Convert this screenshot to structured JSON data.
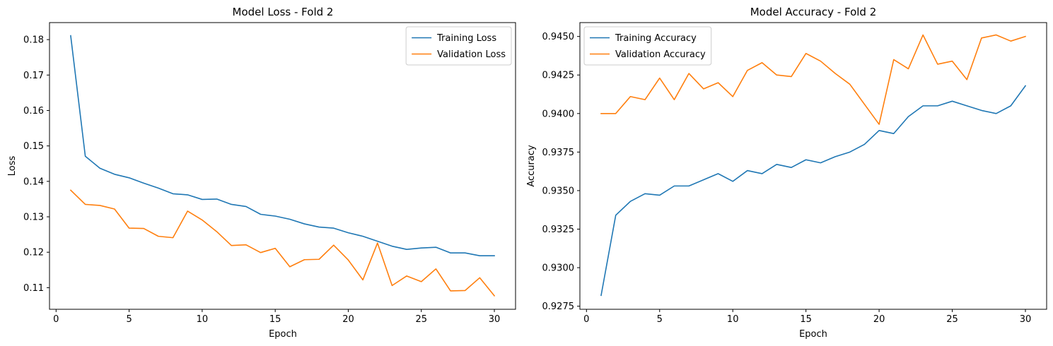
{
  "chart_data": [
    {
      "type": "line",
      "title": "Model Loss - Fold 2",
      "xlabel": "Epoch",
      "ylabel": "Loss",
      "xlim": [
        -0.45,
        31.45
      ],
      "ylim": [
        0.1039,
        0.1848
      ],
      "xticks": [
        0,
        5,
        10,
        15,
        20,
        25,
        30
      ],
      "yticks": [
        0.11,
        0.12,
        0.13,
        0.14,
        0.15,
        0.16,
        0.17,
        0.18
      ],
      "ytick_labels": [
        "0.11",
        "0.12",
        "0.13",
        "0.14",
        "0.15",
        "0.16",
        "0.17",
        "0.18"
      ],
      "legend_position": "top-right",
      "grid": false,
      "x": [
        1,
        2,
        3,
        4,
        5,
        6,
        7,
        8,
        9,
        10,
        11,
        12,
        13,
        14,
        15,
        16,
        17,
        18,
        19,
        20,
        21,
        22,
        23,
        24,
        25,
        26,
        27,
        28,
        29,
        30
      ],
      "series": [
        {
          "name": "Training Loss",
          "color": "#1f77b4",
          "values": [
            0.1811,
            0.1471,
            0.1437,
            0.142,
            0.141,
            0.1395,
            0.1381,
            0.1365,
            0.1362,
            0.1349,
            0.135,
            0.1335,
            0.1329,
            0.1307,
            0.1302,
            0.1293,
            0.128,
            0.1271,
            0.1268,
            0.1255,
            0.1245,
            0.1231,
            0.1217,
            0.1208,
            0.1212,
            0.1214,
            0.1198,
            0.1198,
            0.119,
            0.119
          ]
        },
        {
          "name": "Validation Loss",
          "color": "#ff7f0e",
          "values": [
            0.1375,
            0.1335,
            0.1332,
            0.1322,
            0.1268,
            0.1267,
            0.1245,
            0.1241,
            0.1316,
            0.1291,
            0.1258,
            0.1219,
            0.1221,
            0.1199,
            0.1211,
            0.1159,
            0.1179,
            0.118,
            0.122,
            0.1178,
            0.1122,
            0.1226,
            0.1106,
            0.1133,
            0.1117,
            0.1153,
            0.1091,
            0.1092,
            0.1128,
            0.1077
          ]
        }
      ]
    },
    {
      "type": "line",
      "title": "Model Accuracy - Fold 2",
      "xlabel": "Epoch",
      "ylabel": "Accuracy",
      "xlim": [
        -0.45,
        31.45
      ],
      "ylim": [
        0.9273,
        0.9459
      ],
      "xticks": [
        0,
        5,
        10,
        15,
        20,
        25,
        30
      ],
      "yticks": [
        0.9275,
        0.93,
        0.9325,
        0.935,
        0.9375,
        0.94,
        0.9425,
        0.945
      ],
      "ytick_labels": [
        "0.9275",
        "0.9300",
        "0.9325",
        "0.9350",
        "0.9375",
        "0.9400",
        "0.9425",
        "0.9450"
      ],
      "legend_position": "top-left",
      "grid": false,
      "x": [
        1,
        2,
        3,
        4,
        5,
        6,
        7,
        8,
        9,
        10,
        11,
        12,
        13,
        14,
        15,
        16,
        17,
        18,
        19,
        20,
        21,
        22,
        23,
        24,
        25,
        26,
        27,
        28,
        29,
        30
      ],
      "series": [
        {
          "name": "Training Accuracy",
          "color": "#1f77b4",
          "values": [
            0.9282,
            0.9334,
            0.9343,
            0.9348,
            0.9347,
            0.9353,
            0.9353,
            0.9357,
            0.9361,
            0.9356,
            0.9363,
            0.9361,
            0.9367,
            0.9365,
            0.937,
            0.9368,
            0.9372,
            0.9375,
            0.938,
            0.9389,
            0.9387,
            0.9398,
            0.9405,
            0.9405,
            0.9408,
            0.9405,
            0.9402,
            0.94,
            0.9405,
            0.9418
          ]
        },
        {
          "name": "Validation Accuracy",
          "color": "#ff7f0e",
          "values": [
            0.94,
            0.94,
            0.9411,
            0.9409,
            0.9423,
            0.9409,
            0.9426,
            0.9416,
            0.942,
            0.9411,
            0.9428,
            0.9433,
            0.9425,
            0.9424,
            0.9439,
            0.9434,
            0.9426,
            0.9419,
            0.9406,
            0.9393,
            0.9435,
            0.9429,
            0.9451,
            0.9432,
            0.9434,
            0.9422,
            0.9449,
            0.9451,
            0.9447,
            0.945
          ]
        }
      ]
    }
  ]
}
